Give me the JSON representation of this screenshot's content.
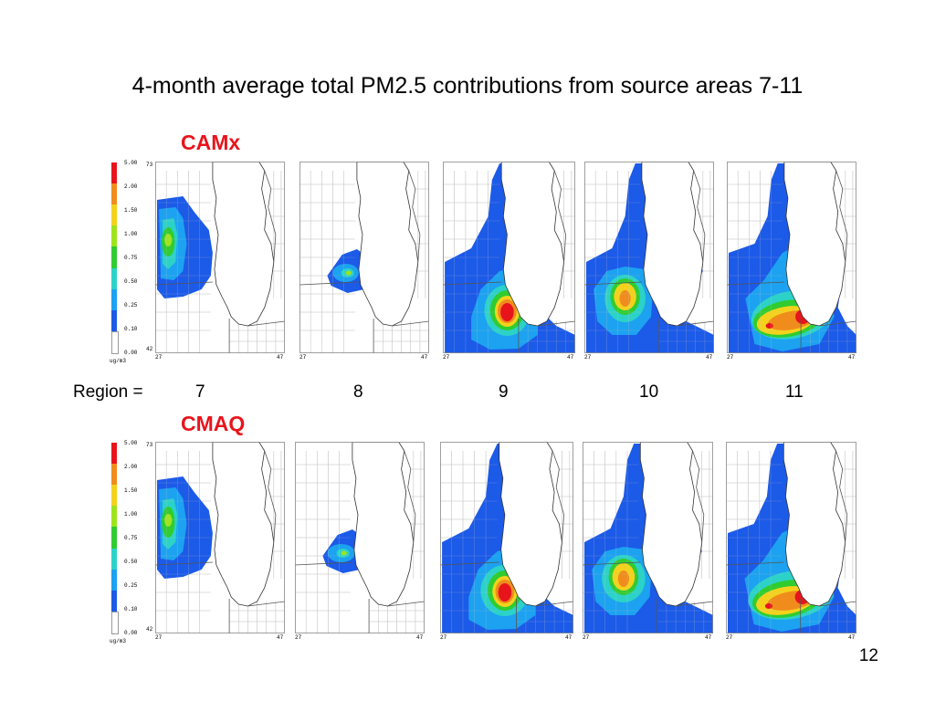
{
  "title": "4-month average total PM2.5 contributions from source areas 7-11",
  "models": [
    {
      "name": "CAMx",
      "key": "camx"
    },
    {
      "name": "CMAQ",
      "key": "cmaq"
    }
  ],
  "region_label": "Region =",
  "regions": [
    "7",
    "8",
    "9",
    "10",
    "11"
  ],
  "colorbar": {
    "unit": "ug/m3",
    "ticks": [
      "5.00",
      "2.00",
      "1.50",
      "1.00",
      "0.75",
      "0.50",
      "0.25",
      "0.10",
      "0.00"
    ],
    "colors": [
      "#e8141c",
      "#f08c1c",
      "#f4d21c",
      "#9ee41c",
      "#30cc30",
      "#2cd2c8",
      "#1ca2f0",
      "#1c5ae8",
      "#ffffff"
    ]
  },
  "axis": {
    "x_left": "27",
    "x_right": "47",
    "y_top": "73",
    "y_bottom": "42"
  },
  "page_number": "12"
}
